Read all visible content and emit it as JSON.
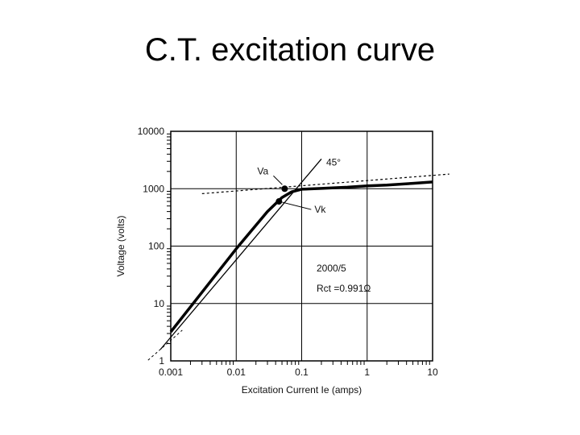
{
  "slide": {
    "title": "C.T. excitation curve"
  },
  "chart_data": {
    "type": "line",
    "xlabel": "Excitation Current Ie (amps)",
    "ylabel": "Voltage (volts)",
    "x_scale": "log",
    "y_scale": "log",
    "xlim": [
      0.001,
      10
    ],
    "ylim": [
      1,
      10000
    ],
    "x_ticks": [
      "0.001",
      "0.01",
      "0.1",
      "1",
      "10"
    ],
    "y_ticks": [
      "1",
      "10",
      "100",
      "1000",
      "10000"
    ],
    "grid": true,
    "series": [
      {
        "role": "excitation-curve",
        "points": [
          [
            0.001,
            3.2
          ],
          [
            0.01,
            90
          ],
          [
            0.03,
            400
          ],
          [
            0.05,
            700
          ],
          [
            0.07,
            880
          ],
          [
            0.1,
            980
          ],
          [
            0.2,
            1010
          ],
          [
            0.5,
            1060
          ],
          [
            1,
            1120
          ],
          [
            2,
            1160
          ],
          [
            5,
            1240
          ],
          [
            10,
            1310
          ]
        ]
      },
      {
        "role": "45-degree-line",
        "points": [
          [
            0.0007,
            1.6
          ],
          [
            0.2,
            3300
          ]
        ]
      },
      {
        "role": "saturation-asymptote",
        "points": [
          [
            0.003,
            820
          ],
          [
            18,
            1800
          ]
        ]
      }
    ],
    "annotations": {
      "angle_label": "45°",
      "va_label": "Va",
      "vk_label": "Vk",
      "ct_ratio": "2000/5",
      "rct": "Rct =0.991Ω"
    },
    "points": {
      "va": [
        0.055,
        1000
      ],
      "vk": [
        0.045,
        600
      ]
    }
  }
}
